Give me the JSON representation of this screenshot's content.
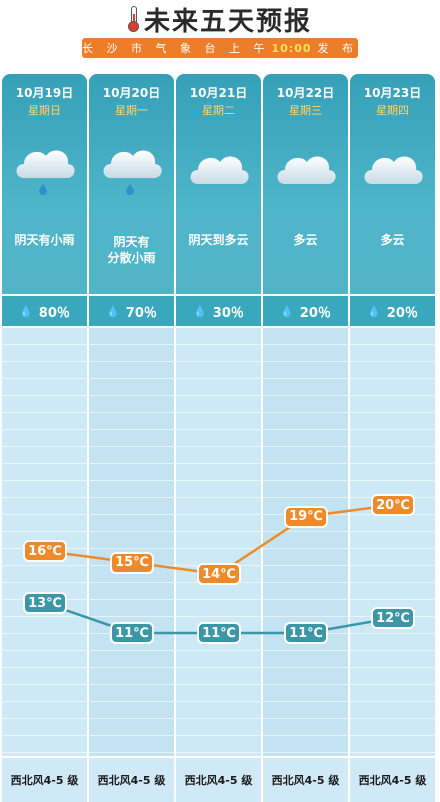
{
  "header": {
    "title": "未来五天预报",
    "subtitle_left": "长 沙 市 气 象 台 上 午",
    "subtitle_time": "10:00",
    "subtitle_right": "发 布"
  },
  "days": [
    {
      "date": "10月19日",
      "weekday": "星期日",
      "condition": "阴天有小雨",
      "condition_line2": "",
      "icon": "cloud-rain-icon",
      "precip": "80％",
      "high": "16℃",
      "low": "13℃",
      "wind": "西北风4-5 级"
    },
    {
      "date": "10月20日",
      "weekday": "星期一",
      "condition": "阴天有",
      "condition_line2": "分散小雨",
      "icon": "cloud-rain-icon",
      "precip": "70％",
      "high": "15℃",
      "low": "11℃",
      "wind": "西北风4-5 级"
    },
    {
      "date": "10月21日",
      "weekday": "星期二",
      "condition": "阴天到多云",
      "condition_line2": "",
      "icon": "cloud-icon",
      "precip": "30％",
      "high": "14℃",
      "low": "11℃",
      "wind": "西北风4-5 级"
    },
    {
      "date": "10月22日",
      "weekday": "星期三",
      "condition": "多云",
      "condition_line2": "",
      "icon": "cloud-icon",
      "precip": "20％",
      "high": "19℃",
      "low": "11℃",
      "wind": "西北风4-5 级"
    },
    {
      "date": "10月23日",
      "weekday": "星期四",
      "condition": "多云",
      "condition_line2": "",
      "icon": "cloud-icon",
      "precip": "20％",
      "high": "20℃",
      "low": "12℃",
      "wind": "西北风4-5 级"
    }
  ],
  "colors": {
    "high_line": "#ee8a2a",
    "low_line": "#3b97a6",
    "header_bar": "#ee7d2a",
    "card_top": "#35a0b8"
  }
}
